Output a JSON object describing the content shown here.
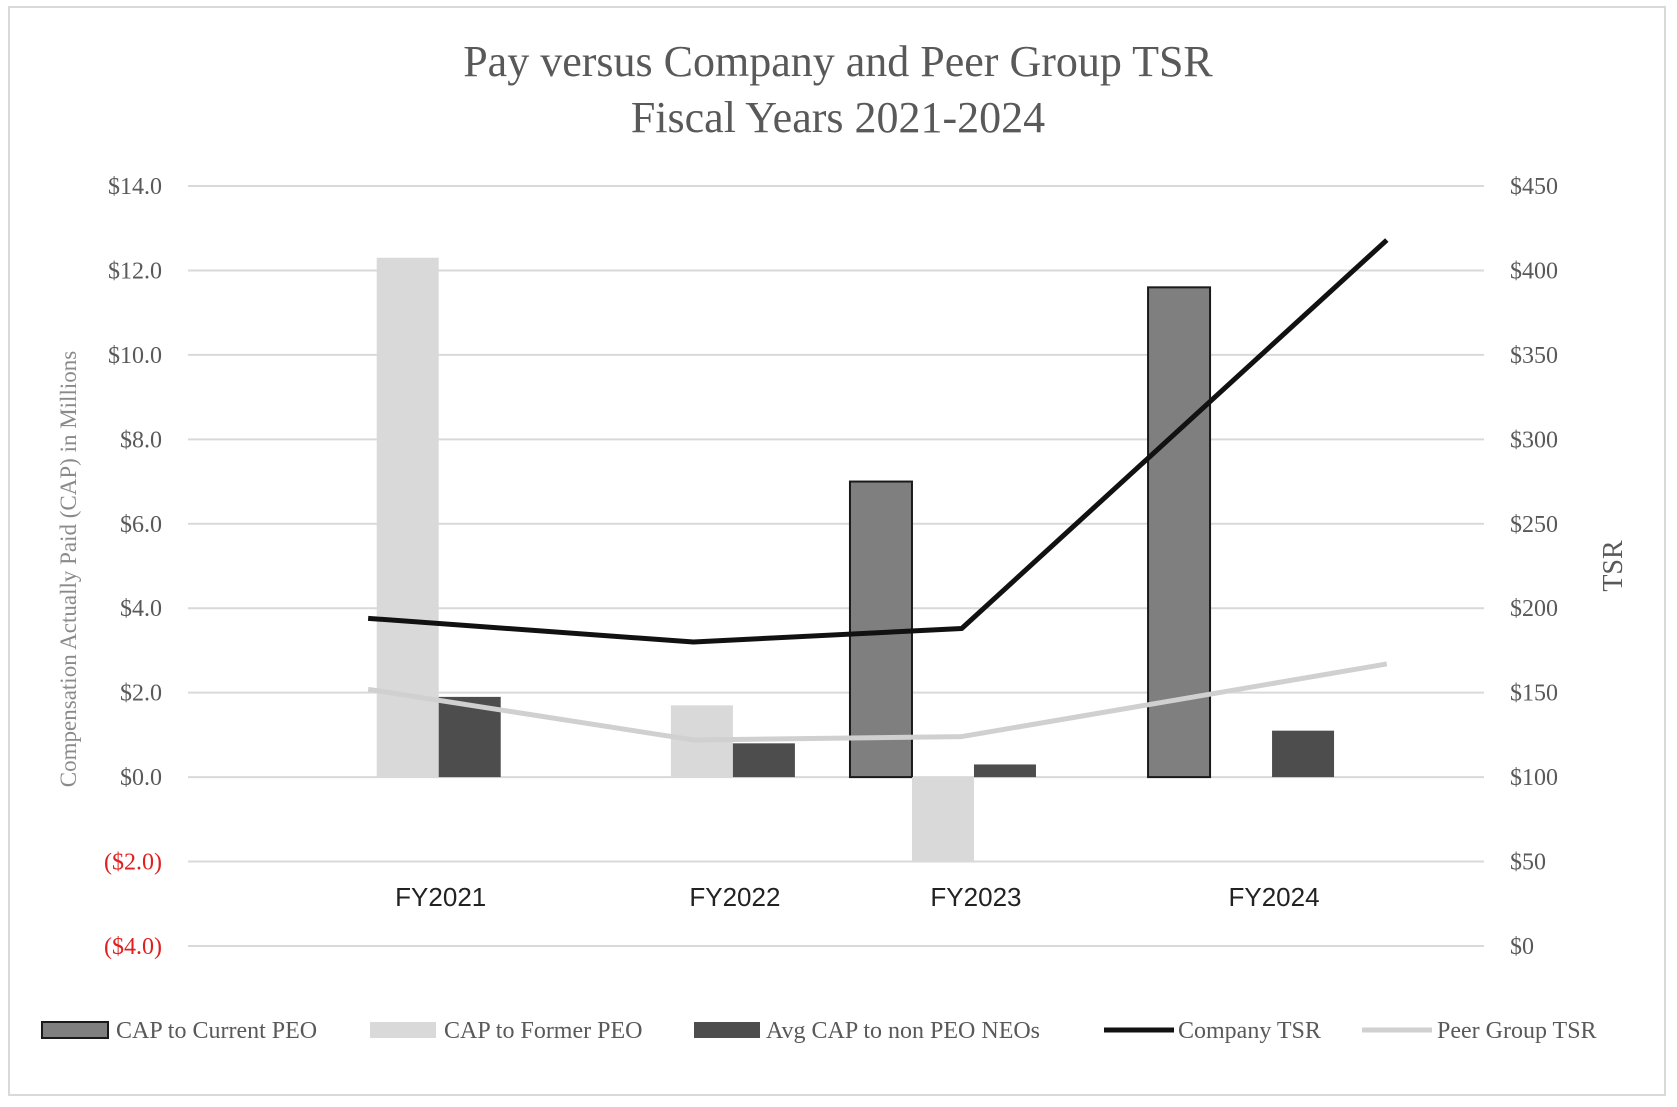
{
  "chart_data": {
    "type": "bar",
    "title_line1": "Pay versus Company and Peer Group TSR",
    "title_line2": "Fiscal Years 2021-2024",
    "categories": [
      "FY2021",
      "FY2022",
      "FY2023",
      "FY2024"
    ],
    "ylabel": "Compensation Actually Paid (CAP) in Millions",
    "y2label": "TSR",
    "ylim": [
      -4,
      14
    ],
    "y2lim": [
      0,
      450
    ],
    "yticks": [
      "($4.0)",
      "($2.0)",
      "$0.0",
      "$2.0",
      "$4.0",
      "$6.0",
      "$8.0",
      "$10.0",
      "$12.0",
      "$14.0"
    ],
    "ytick_values": [
      -4,
      -2,
      0,
      2,
      4,
      6,
      8,
      10,
      12,
      14
    ],
    "y2ticks": [
      "$0",
      "$50",
      "$100",
      "$150",
      "$200",
      "$250",
      "$300",
      "$350",
      "$400",
      "$450"
    ],
    "y2tick_values": [
      0,
      50,
      100,
      150,
      200,
      250,
      300,
      350,
      400,
      450
    ],
    "bar_series": [
      {
        "name": "CAP to Current PEO",
        "values": [
          null,
          null,
          7.0,
          11.6
        ],
        "color": "#7f7f7f"
      },
      {
        "name": "CAP to Former PEO",
        "values": [
          12.3,
          1.7,
          -2.0,
          null
        ],
        "color": "#d9d9d9"
      },
      {
        "name": "Avg CAP to non PEO NEOs",
        "values": [
          1.9,
          0.8,
          0.3,
          1.1
        ],
        "color": "#4d4d4d"
      }
    ],
    "line_series": [
      {
        "name": "Company TSR",
        "values": [
          194,
          180,
          188,
          418
        ],
        "color": "#111111"
      },
      {
        "name": "Peer Group TSR",
        "values": [
          152,
          122,
          124,
          167
        ],
        "color": "#d0d0d0"
      }
    ],
    "grid": true,
    "legend_position": "bottom",
    "negative_tick_color": "#e02020"
  }
}
